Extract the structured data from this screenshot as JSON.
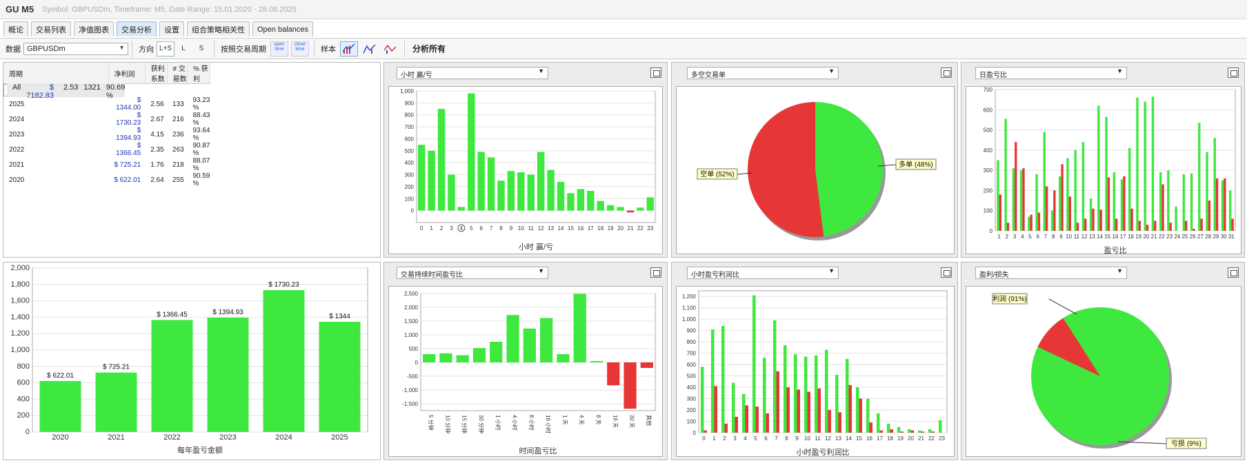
{
  "title": "GU M5",
  "subtitle": "Symbol: GBPUSDm, Timeframe: M5, Date Range: 15.01.2020 - 28.08.2025",
  "tabs": [
    "概论",
    "交易列表",
    "净值图表",
    "交易分析",
    "设置",
    "组合策略相关性",
    "Open balances"
  ],
  "active_tab": 3,
  "toolbar": {
    "data_label": "数据",
    "symbol": "GBPUSDm",
    "direction_label": "方向",
    "dir_ls": "L+S",
    "dir_l": "L",
    "dir_s": "S",
    "period_label": "按照交易周期",
    "open_time": "open time",
    "close_time": "close time",
    "sample_label": "样本",
    "analyze_all": "分析所有"
  },
  "table": {
    "headers": [
      "周期",
      "净利润",
      "获利系数",
      "# 交易数",
      "% 获利"
    ],
    "rows": [
      [
        "All",
        "$ 7182.83",
        "2.53",
        "1321",
        "90.69 %"
      ],
      [
        "2025",
        "$ 1344.00",
        "2.56",
        "133",
        "93.23 %"
      ],
      [
        "2024",
        "$ 1730.23",
        "2.67",
        "216",
        "88.43 %"
      ],
      [
        "2023",
        "$ 1394.93",
        "4.15",
        "236",
        "93.64 %"
      ],
      [
        "2022",
        "$ 1366.45",
        "2.35",
        "263",
        "90.87 %"
      ],
      [
        "2021",
        "$ 725.21",
        "1.76",
        "218",
        "88.07 %"
      ],
      [
        "2020",
        "$ 622.01",
        "2.64",
        "255",
        "90.59 %"
      ]
    ]
  },
  "panels": {
    "hourly": "小时 赢/亏",
    "longshort": "多空交易单",
    "daily": "日盈亏比",
    "duration": "交易持续时间盈亏比",
    "hourly_ratio": "小时盈亏利润比",
    "profitloss": "盈利/损失"
  },
  "colors": {
    "green": "#3ee83e",
    "red": "#e63636"
  },
  "chart_data": [
    {
      "type": "bar",
      "xlabel": "小时 赢/亏",
      "categories": [
        "0",
        "1",
        "2",
        "3",
        "4",
        "5",
        "6",
        "7",
        "8",
        "9",
        "10",
        "11",
        "12",
        "13",
        "14",
        "15",
        "16",
        "17",
        "18",
        "19",
        "20",
        "21",
        "22",
        "23"
      ],
      "values": [
        550,
        500,
        850,
        300,
        30,
        980,
        490,
        445,
        250,
        330,
        320,
        300,
        490,
        340,
        240,
        145,
        180,
        165,
        80,
        45,
        30,
        -15,
        25,
        110
      ],
      "ylim": [
        -100,
        1000
      ],
      "yticks": [
        0,
        100,
        200,
        300,
        400,
        500,
        600,
        700,
        800,
        900,
        1000
      ],
      "ytick_labels": [
        "0",
        "100",
        "200",
        "300",
        "400",
        "500",
        "600",
        "700",
        "800",
        "900",
        "1,000"
      ],
      "highlighted_tick": "4"
    },
    {
      "type": "pie",
      "labels": [
        "多单 (48%)",
        "空单 (52%)"
      ],
      "values": [
        48,
        52
      ],
      "colors": [
        "#3ee83e",
        "#e63636"
      ]
    },
    {
      "type": "bar",
      "xlabel": "盈亏比",
      "categories": [
        "1",
        "2",
        "3",
        "4",
        "5",
        "6",
        "7",
        "8",
        "9",
        "10",
        "11",
        "12",
        "13",
        "14",
        "15",
        "16",
        "17",
        "18",
        "19",
        "20",
        "21",
        "22",
        "23",
        "24",
        "25",
        "26",
        "27",
        "28",
        "29",
        "30",
        "31"
      ],
      "series": [
        {
          "values": [
            350,
            555,
            310,
            300,
            70,
            280,
            490,
            100,
            270,
            360,
            400,
            440,
            160,
            620,
            565,
            290,
            255,
            410,
            660,
            640,
            665,
            290,
            300,
            120,
            280,
            285,
            535,
            390,
            460,
            250,
            200
          ]
        },
        {
          "values": [
            180,
            40,
            440,
            310,
            80,
            90,
            220,
            200,
            330,
            170,
            40,
            60,
            110,
            105,
            265,
            60,
            270,
            110,
            50,
            30,
            50,
            230,
            40,
            0,
            50,
            10,
            60,
            150,
            260,
            260,
            60
          ]
        }
      ],
      "ylim": [
        0,
        700
      ],
      "yticks": [
        0,
        100,
        200,
        300,
        400,
        500,
        600,
        700
      ]
    },
    {
      "type": "bar",
      "xlabel": "时间盈亏比",
      "categories": [
        "5 分钟",
        "10 分钟",
        "15 分钟",
        "30 分钟",
        "1 小时",
        "4 小时",
        "8 小时",
        "16 小时",
        "1 天",
        "4 天",
        "8 天",
        "16 天",
        "30 天",
        "其他"
      ],
      "values": [
        300,
        330,
        260,
        520,
        750,
        1720,
        1230,
        1610,
        300,
        2490,
        50,
        -830,
        -1680,
        -200
      ],
      "ylim": [
        -1750,
        2500
      ],
      "yticks": [
        -1500,
        -1000,
        -500,
        0,
        500,
        1000,
        1500,
        2000,
        2500
      ],
      "ytick_labels": [
        "-1,500",
        "-1,000",
        "-500",
        "0",
        "500",
        "1,000",
        "1,500",
        "2,000",
        "2,500"
      ]
    },
    {
      "type": "bar",
      "xlabel": "小时盈亏利润比",
      "categories": [
        "0",
        "1",
        "2",
        "3",
        "4",
        "5",
        "6",
        "7",
        "8",
        "9",
        "10",
        "11",
        "12",
        "13",
        "14",
        "15",
        "16",
        "17",
        "18",
        "19",
        "20",
        "21",
        "22",
        "23"
      ],
      "series": [
        {
          "values": [
            580,
            910,
            940,
            440,
            340,
            1210,
            660,
            990,
            770,
            690,
            670,
            680,
            730,
            510,
            650,
            400,
            300,
            170,
            80,
            50,
            30,
            20,
            30,
            110
          ]
        },
        {
          "values": [
            20,
            410,
            80,
            140,
            240,
            230,
            170,
            540,
            400,
            380,
            360,
            390,
            200,
            180,
            420,
            300,
            90,
            20,
            30,
            10,
            20,
            10,
            10,
            0
          ]
        }
      ],
      "ylim": [
        0,
        1250
      ],
      "yticks": [
        0,
        100,
        200,
        300,
        400,
        500,
        600,
        700,
        800,
        900,
        1000,
        1100,
        1200
      ],
      "ytick_labels": [
        "0",
        "100",
        "200",
        "300",
        "400",
        "500",
        "600",
        "700",
        "800",
        "900",
        "1,000",
        "1,100",
        "1,200"
      ]
    },
    {
      "type": "pie",
      "labels": [
        "利润 (91%)",
        "亏损 (9%)"
      ],
      "values": [
        91,
        9
      ],
      "colors": [
        "#3ee83e",
        "#e63636"
      ]
    },
    {
      "type": "bar",
      "xlabel": "每年盈亏金额",
      "categories": [
        "2020",
        "2021",
        "2022",
        "2023",
        "2024",
        "2025"
      ],
      "values": [
        622.01,
        725.21,
        1366.45,
        1394.93,
        1730.23,
        1344
      ],
      "data_labels": [
        "$ 622.01",
        "$ 725.21",
        "$ 1366.45",
        "$ 1394.93",
        "$ 1730.23",
        "$ 1344"
      ],
      "ylim": [
        0,
        2000
      ],
      "yticks": [
        0,
        200,
        400,
        600,
        800,
        1000,
        1200,
        1400,
        1600,
        1800,
        2000
      ],
      "ytick_labels": [
        "0",
        "200",
        "400",
        "600",
        "800",
        "1,000",
        "1,200",
        "1,400",
        "1,600",
        "1,800",
        "2,000"
      ]
    }
  ]
}
